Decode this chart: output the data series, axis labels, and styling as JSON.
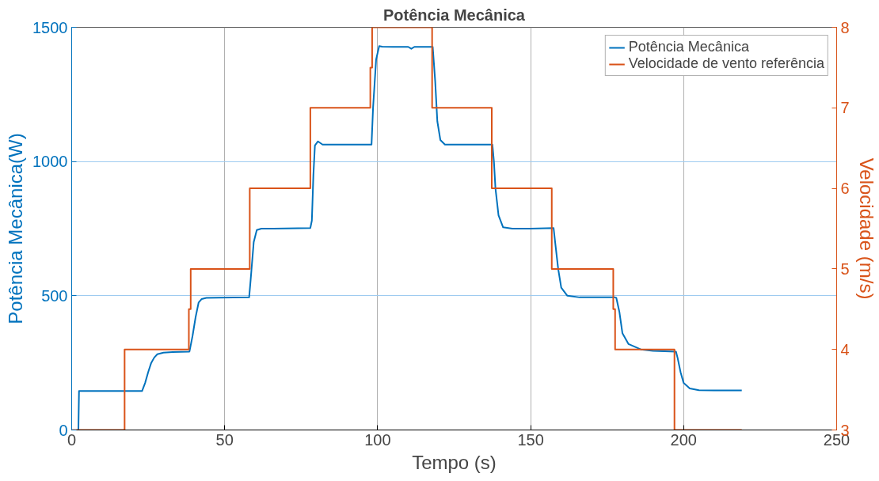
{
  "chart_data": {
    "type": "line",
    "title": "Potência Mecânica",
    "xlabel": "Tempo (s)",
    "ylabel": "Potência Mecânica(W)",
    "y2label": "Velocidade (m/s)",
    "xlim": [
      0,
      250
    ],
    "xticks": [
      0,
      50,
      100,
      150,
      200,
      250
    ],
    "ylim": [
      0,
      1500
    ],
    "yticks": [
      0,
      500,
      1000,
      1500
    ],
    "y2lim": [
      3,
      8
    ],
    "y2ticks": [
      3,
      4,
      5,
      6,
      7,
      8
    ],
    "grid": true,
    "legend": "top right",
    "line_style": "solid",
    "marker": "none",
    "series": [
      {
        "name": "Potência Mecânica",
        "color": "#0072bd",
        "x": [
          2.2,
          2.4,
          23,
          24,
          25,
          26,
          27,
          28,
          30,
          33,
          38.5,
          39.5,
          40.5,
          41.5,
          42.5,
          44,
          48,
          58,
          58.5,
          59.5,
          60.5,
          62,
          66,
          78,
          78.5,
          79,
          79.5,
          80.5,
          82,
          90,
          98,
          98.5,
          99.5,
          100.5,
          101.5,
          105,
          110,
          111,
          112,
          118,
          118.8,
          119.5,
          120.5,
          122,
          130,
          137.5,
          138,
          138.5,
          139.5,
          141,
          144,
          150,
          157.5,
          158,
          159,
          160,
          162,
          166,
          177.5,
          178,
          179,
          180,
          182,
          186,
          190,
          197.5,
          198,
          199,
          200,
          202,
          205,
          210,
          219
        ],
        "values": [
          0,
          145,
          145,
          175,
          215,
          250,
          270,
          282,
          288,
          290,
          292,
          350,
          420,
          475,
          488,
          492,
          493,
          494,
          560,
          700,
          745,
          750,
          750,
          752,
          780,
          950,
          1060,
          1075,
          1063,
          1063,
          1063,
          1200,
          1380,
          1430,
          1428,
          1427,
          1427,
          1420,
          1427,
          1427,
          1300,
          1150,
          1080,
          1063,
          1063,
          1063,
          1000,
          900,
          800,
          755,
          750,
          750,
          752,
          700,
          600,
          530,
          500,
          494,
          494,
          492,
          440,
          360,
          320,
          300,
          295,
          292,
          270,
          215,
          175,
          155,
          148,
          147,
          147
        ]
      },
      {
        "name": "Velocidade de vento referência",
        "color": "#d95319",
        "axis": "y2",
        "x": [
          0,
          17.3,
          17.3,
          38.3,
          38.3,
          38.9,
          38.9,
          58.2,
          58.2,
          78.0,
          78.0,
          97.6,
          97.6,
          98.2,
          98.2,
          117.8,
          117.8,
          137.3,
          137.3,
          156.9,
          156.9,
          177.0,
          177.0,
          177.6,
          177.6,
          197.0,
          197.0,
          219
        ],
        "values": [
          3,
          3,
          4,
          4,
          4.5,
          4.5,
          5,
          5,
          6,
          6,
          7,
          7,
          7.5,
          7.5,
          8,
          8,
          7,
          7,
          6,
          6,
          5,
          5,
          4.5,
          4.5,
          4,
          4,
          3,
          3
        ]
      }
    ]
  }
}
